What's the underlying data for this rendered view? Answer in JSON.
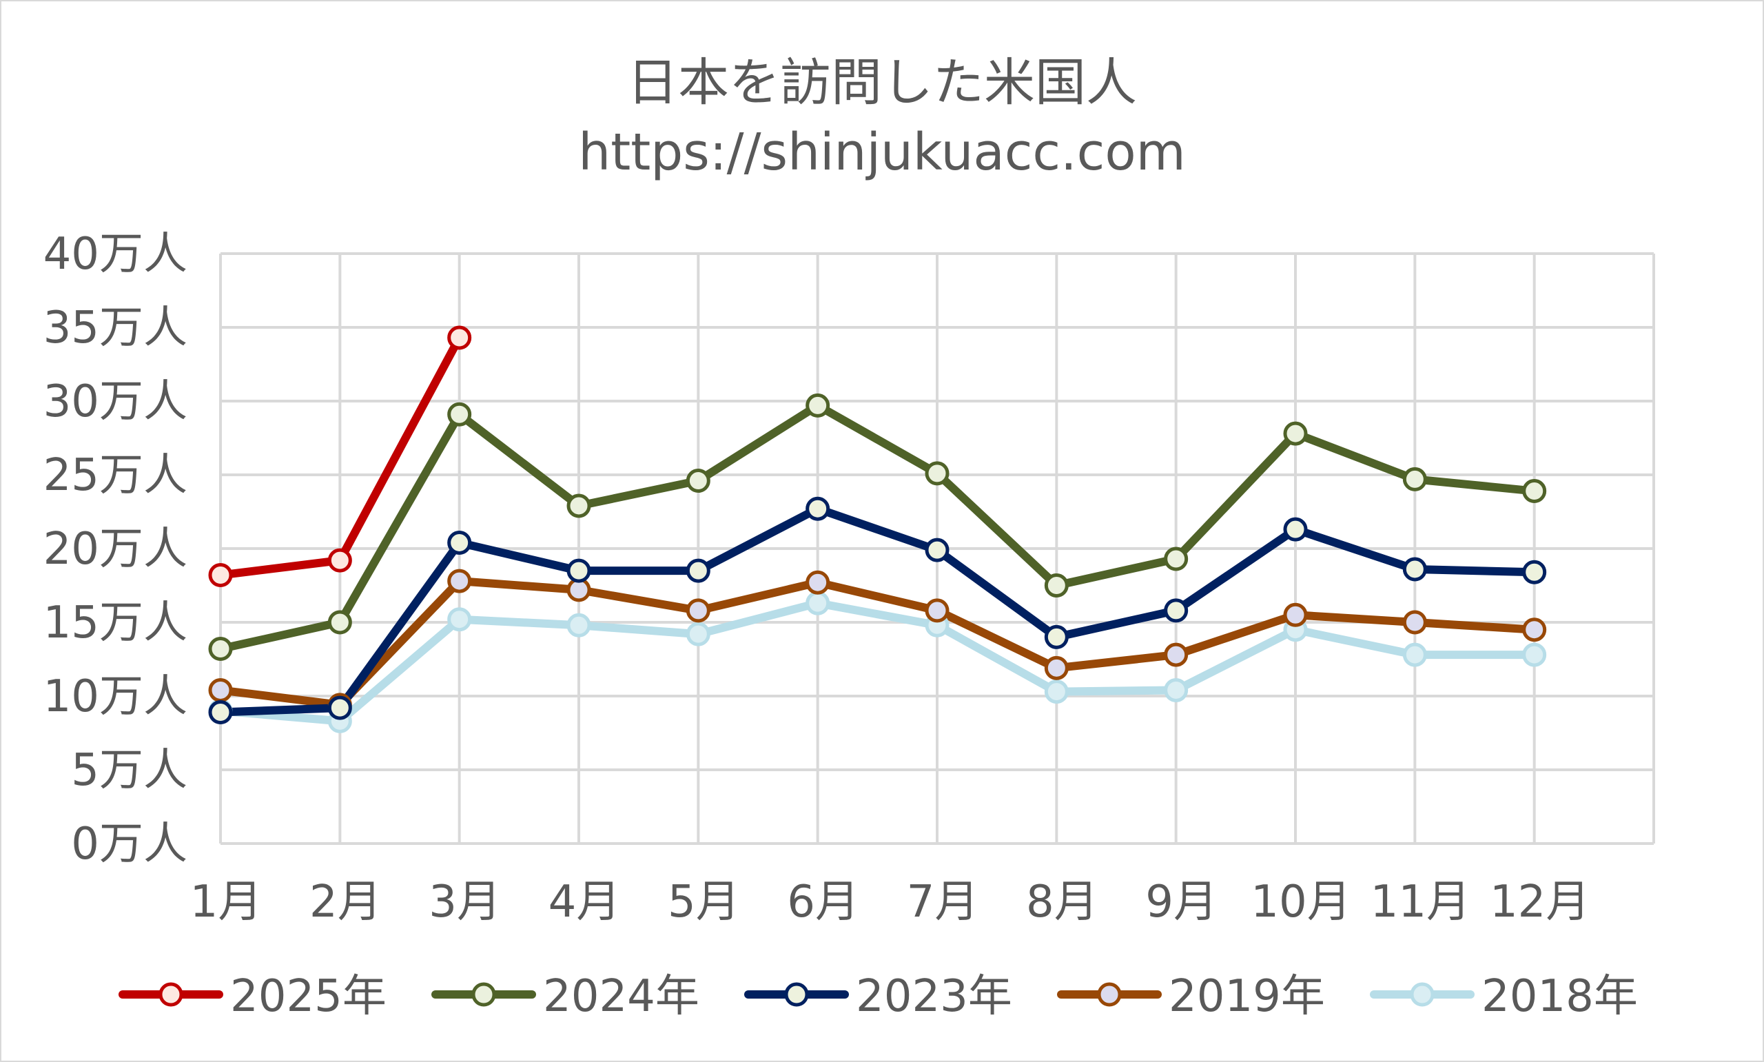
{
  "chart_data": {
    "type": "line",
    "title": "日本を訪問した米国人",
    "subtitle": "https://shinjukuacc.com",
    "xlabel": "",
    "ylabel": "",
    "categories": [
      "1月",
      "2月",
      "3月",
      "4月",
      "5月",
      "6月",
      "7月",
      "8月",
      "9月",
      "10月",
      "11月",
      "12月"
    ],
    "y_tick_labels": [
      "0万人",
      "5万人",
      "10万人",
      "15万人",
      "20万人",
      "25万人",
      "30万人",
      "35万人",
      "40万人"
    ],
    "ylim": [
      0,
      40
    ],
    "y_unit": "万人",
    "grid": true,
    "legend_position": "bottom",
    "series": [
      {
        "name": "2025年",
        "color": "#c00000",
        "marker_fill": "#fde9e1",
        "values": [
          18.2,
          19.2,
          34.3,
          null,
          null,
          null,
          null,
          null,
          null,
          null,
          null,
          null
        ]
      },
      {
        "name": "2024年",
        "color": "#4f6228",
        "marker_fill": "#ebf1de",
        "values": [
          13.2,
          15.0,
          29.1,
          22.9,
          24.6,
          29.7,
          25.1,
          17.5,
          19.3,
          27.8,
          24.7,
          23.9
        ]
      },
      {
        "name": "2023年",
        "color": "#002060",
        "marker_fill": "#eef2de",
        "values": [
          8.9,
          9.2,
          20.4,
          18.5,
          18.5,
          22.7,
          19.9,
          14.0,
          15.8,
          21.3,
          18.6,
          18.4
        ]
      },
      {
        "name": "2019年",
        "color": "#984807",
        "marker_fill": "#dcdcef",
        "values": [
          10.4,
          9.4,
          17.8,
          17.2,
          15.8,
          17.7,
          15.8,
          11.9,
          12.8,
          15.5,
          15.0,
          14.5
        ]
      },
      {
        "name": "2018年",
        "color": "#b7dde8",
        "marker_fill": "#daeef3",
        "values": [
          9.0,
          8.3,
          15.2,
          14.8,
          14.2,
          16.3,
          14.8,
          10.3,
          10.4,
          14.5,
          12.8,
          12.8
        ]
      }
    ]
  }
}
